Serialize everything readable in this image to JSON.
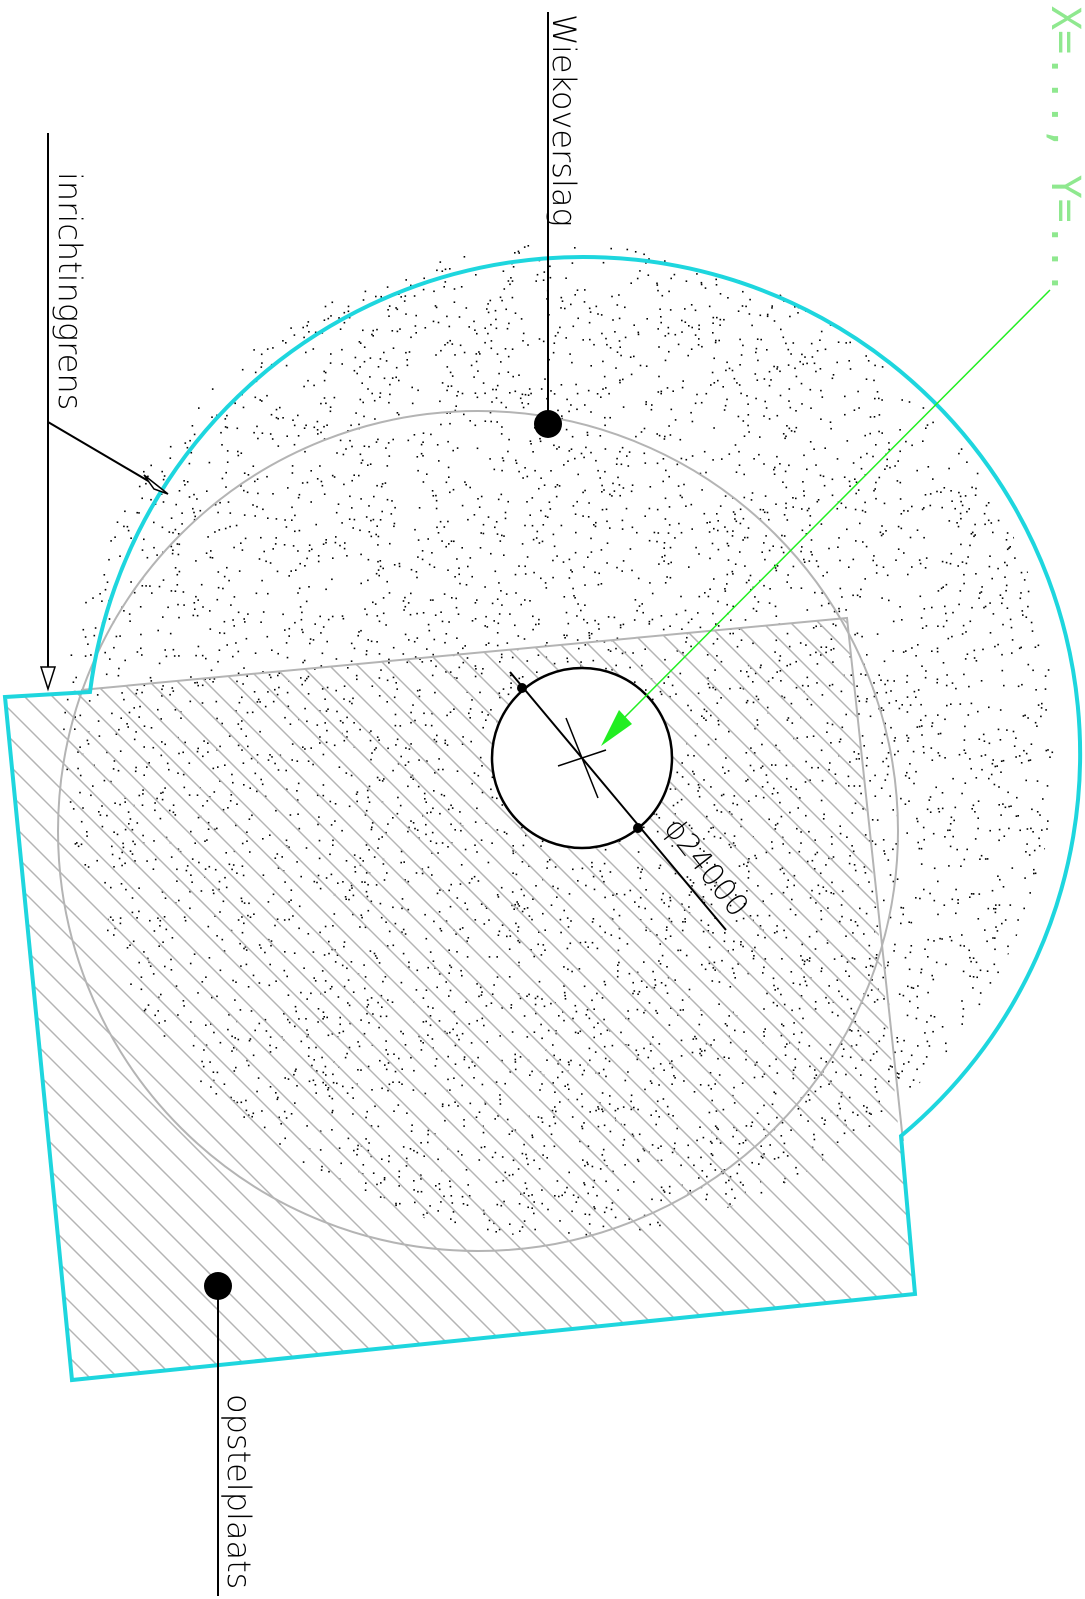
{
  "labels": {
    "wiekoverslag": "Wiekoverslag",
    "inrichtinggrens": "inrichtinggrens",
    "opstelplaats": "opstelplaats",
    "dimension": "ϕ24000",
    "coordinate": "X=..., Y=..."
  },
  "colors": {
    "boundary": "#1ED6DE",
    "hatch": "#B4B4B4",
    "overlap_circle": "#B4B4B4",
    "leader": "#000000",
    "coordinate_pointer": "#22EE22",
    "stipple": "#000000"
  }
}
